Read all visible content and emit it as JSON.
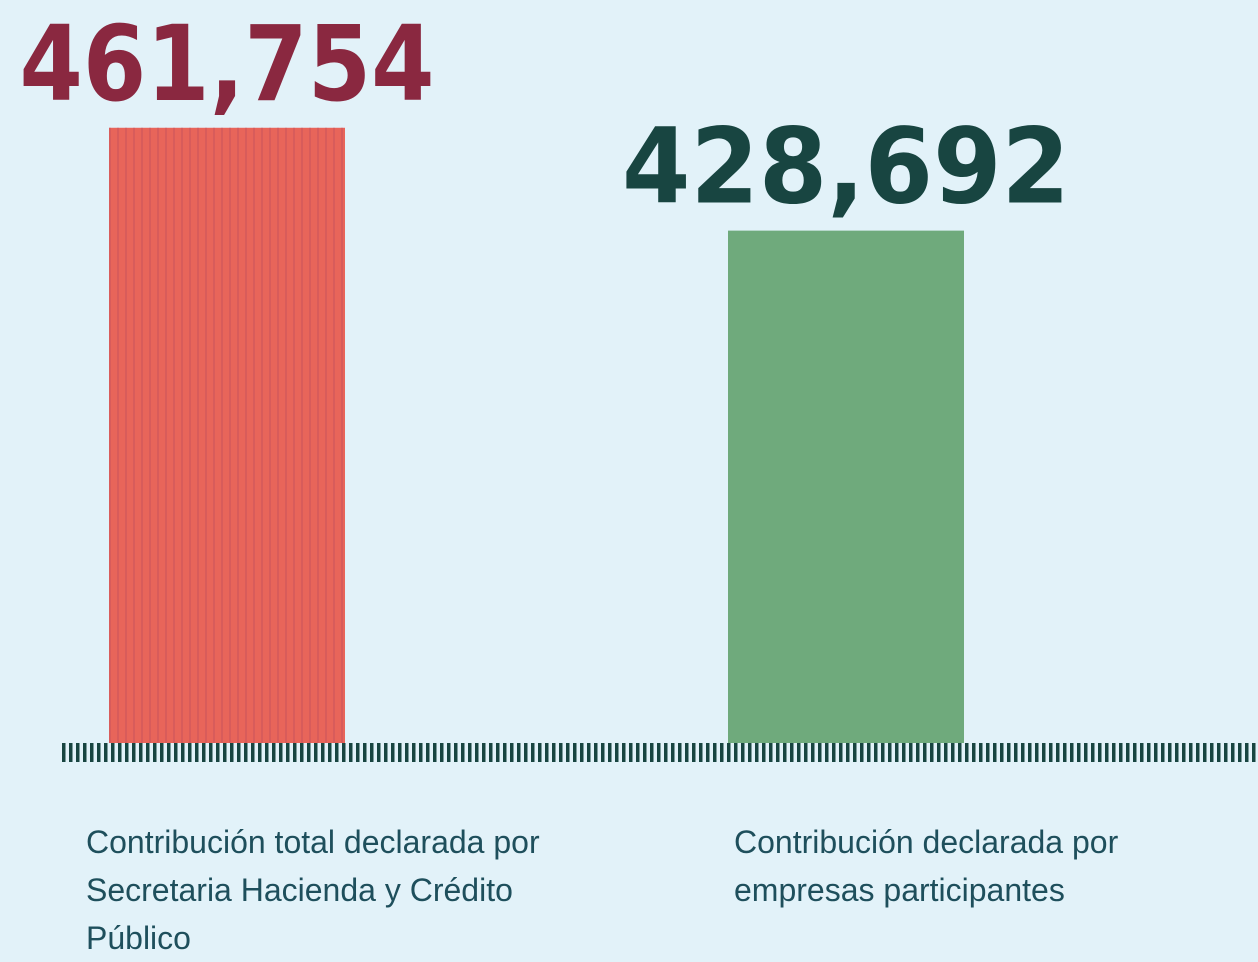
{
  "chart_data": {
    "type": "bar",
    "categories": [
      "Contribución total declarada por Secretaria Hacienda y Crédito Público",
      "Contribución declarada por empresas participantes"
    ],
    "values": [
      461754,
      428692
    ],
    "value_labels": [
      "461,754",
      "428,692"
    ],
    "colors": [
      "#e8655a",
      "#6faa7c"
    ],
    "label_colors": [
      "#8a2840",
      "#184541"
    ],
    "ylim": [
      264000,
      462000
    ]
  }
}
